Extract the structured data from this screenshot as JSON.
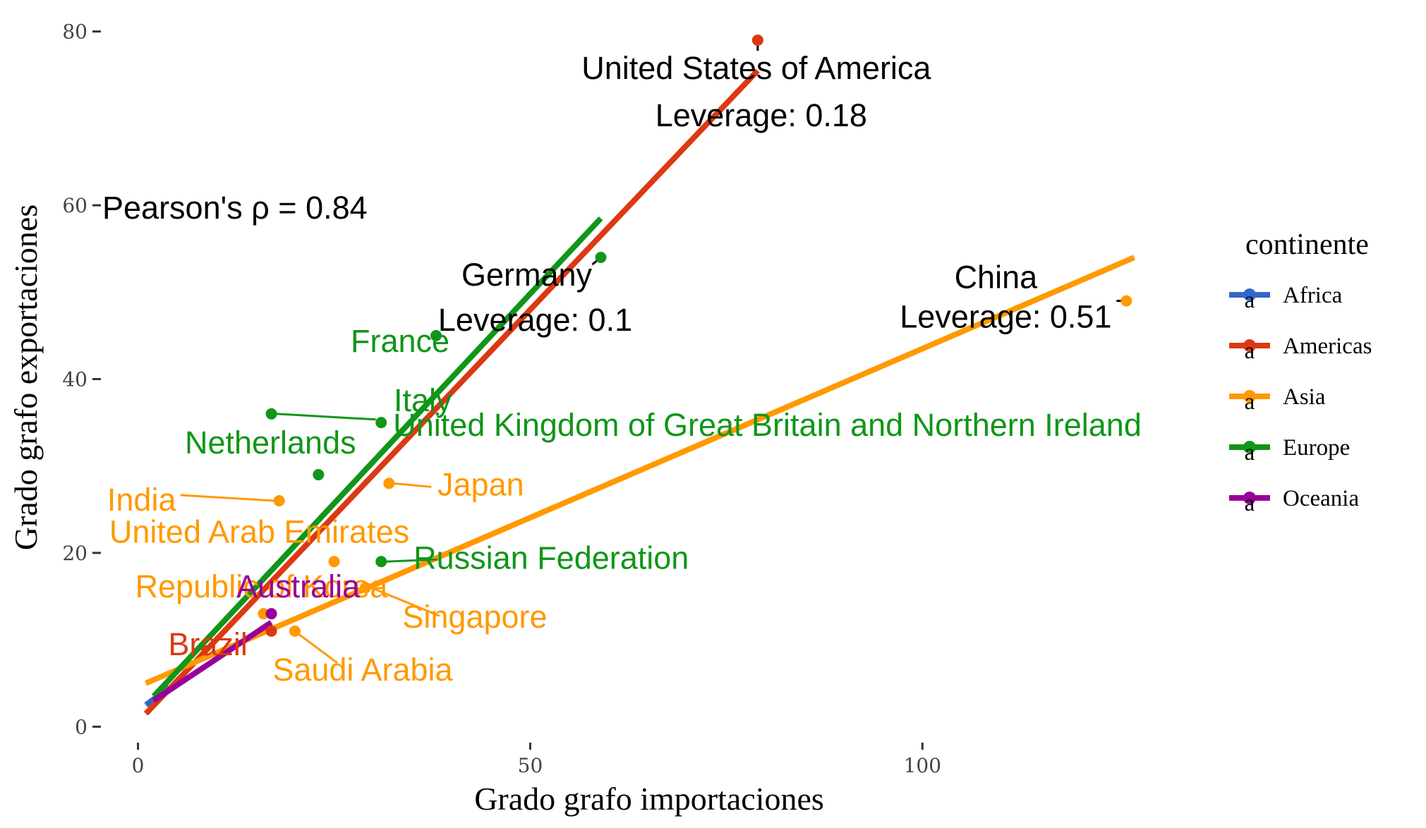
{
  "chart_data": {
    "type": "scatter",
    "xlabel": "Grado grafo importaciones",
    "ylabel": "Grado grafo exportaciones",
    "xlim": [
      -5,
      140
    ],
    "ylim": [
      -2,
      82
    ],
    "x_ticks": [
      0,
      50,
      100
    ],
    "y_ticks": [
      0,
      20,
      40,
      60,
      80
    ],
    "grid": false,
    "legend_position": "right",
    "legend": {
      "title": "continente",
      "items": [
        {
          "name": "Africa",
          "color": "#3366cc"
        },
        {
          "name": "Americas",
          "color": "#dc3912"
        },
        {
          "name": "Asia",
          "color": "#ff9900"
        },
        {
          "name": "Europe",
          "color": "#109618"
        },
        {
          "name": "Oceania",
          "color": "#990099"
        }
      ]
    },
    "annotation": "Pearson's ρ = 0.84",
    "points": [
      {
        "label": "United States of America",
        "continent": "Americas",
        "x": 79,
        "y": 79
      },
      {
        "label": "Brazil",
        "continent": "Americas",
        "x": 17,
        "y": 11
      },
      {
        "label": "China",
        "continent": "Asia",
        "x": 126,
        "y": 49
      },
      {
        "label": "Japan",
        "continent": "Asia",
        "x": 32,
        "y": 28
      },
      {
        "label": "India",
        "continent": "Asia",
        "x": 18,
        "y": 26
      },
      {
        "label": "United Arab Emirates",
        "continent": "Asia",
        "x": 25,
        "y": 19
      },
      {
        "label": "Republic of Korea",
        "continent": "Asia",
        "x": 16,
        "y": 13
      },
      {
        "label": "Singapore",
        "continent": "Asia",
        "x": 29,
        "y": 16
      },
      {
        "label": "Saudi Arabia",
        "continent": "Asia",
        "x": 20,
        "y": 11
      },
      {
        "label": "Germany",
        "continent": "Europe",
        "x": 59,
        "y": 54
      },
      {
        "label": "France",
        "continent": "Europe",
        "x": 38,
        "y": 45
      },
      {
        "label": "Italy",
        "continent": "Europe",
        "x": 31,
        "y": 35
      },
      {
        "label": "United Kingdom of Great Britain and Northern Ireland",
        "continent": "Europe",
        "x": 17,
        "y": 36
      },
      {
        "label": "Netherlands",
        "continent": "Europe",
        "x": 23,
        "y": 29
      },
      {
        "label": "Russian Federation",
        "continent": "Europe",
        "x": 31,
        "y": 19
      },
      {
        "label": "Australia",
        "continent": "Oceania",
        "x": 17,
        "y": 13
      }
    ],
    "leverage_labels": [
      {
        "country": "United States of America",
        "text": "Leverage: 0.18"
      },
      {
        "country": "Germany",
        "text": "Leverage: 0.1"
      },
      {
        "country": "China",
        "text": "Leverage: 0.51"
      }
    ],
    "fit_lines": [
      {
        "continent": "Africa",
        "x": [
          1,
          4
        ],
        "y": [
          2.5,
          4.5
        ]
      },
      {
        "continent": "Americas",
        "x": [
          1,
          79
        ],
        "y": [
          1.5,
          75.5
        ]
      },
      {
        "continent": "Asia",
        "x": [
          1,
          127
        ],
        "y": [
          5,
          54
        ]
      },
      {
        "continent": "Europe",
        "x": [
          2,
          59
        ],
        "y": [
          3.5,
          58.5
        ]
      },
      {
        "continent": "Oceania",
        "x": [
          2,
          17
        ],
        "y": [
          3,
          12
        ]
      }
    ]
  }
}
